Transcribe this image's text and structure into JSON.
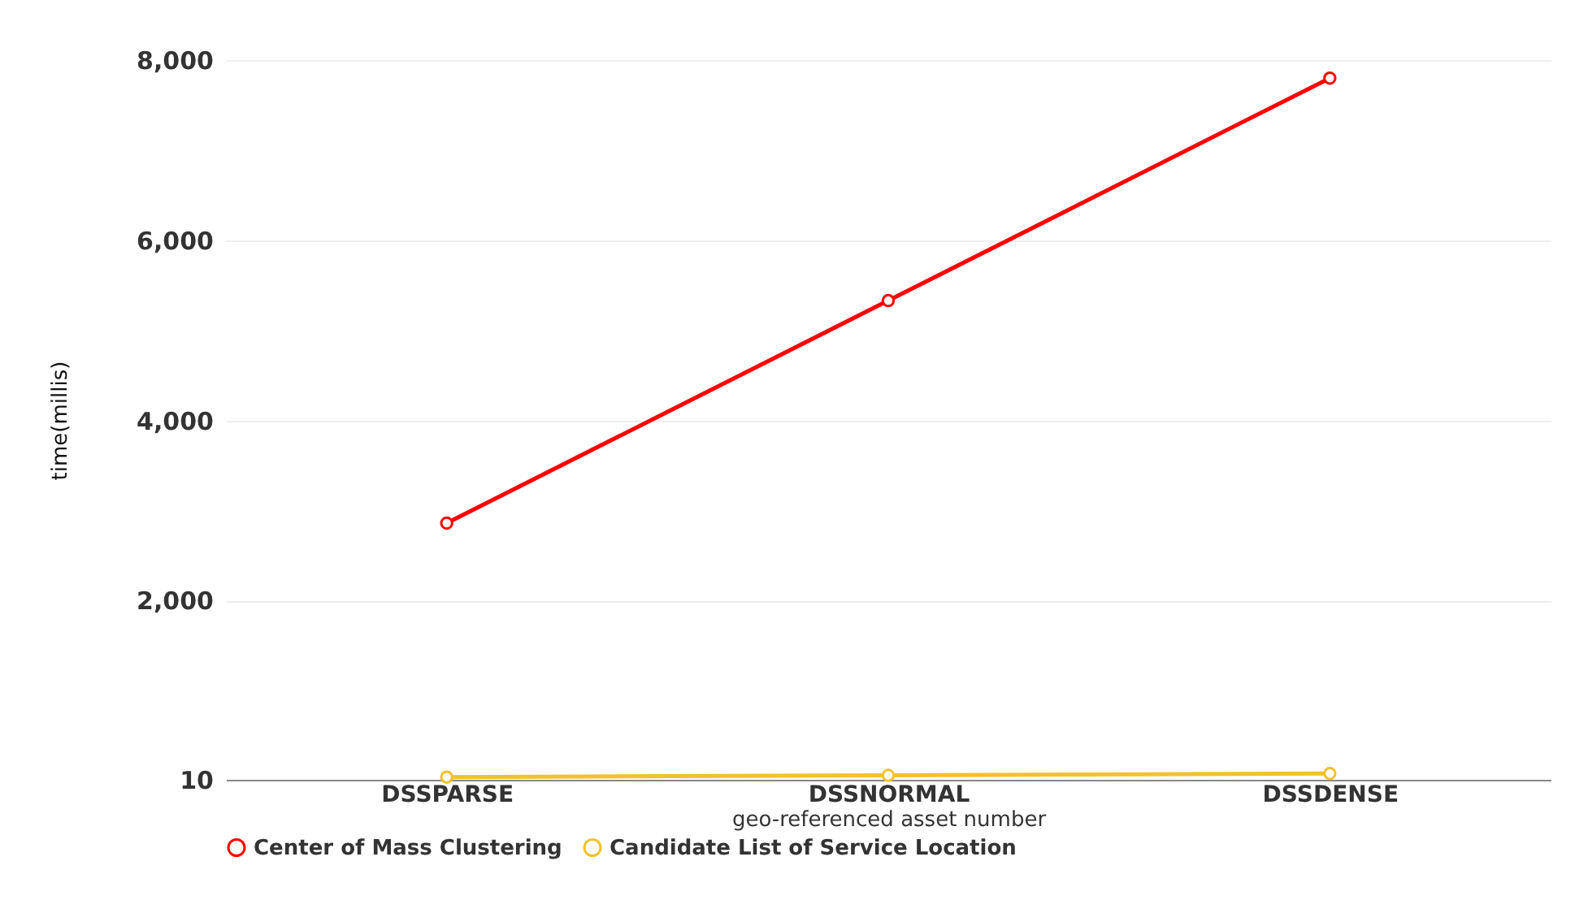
{
  "chart_data": {
    "type": "line",
    "xlabel": "geo-referenced asset number",
    "ylabel": "time(millis)",
    "categories": [
      "DSSPARSE",
      "DSSNORMAL",
      "DSSDENSE"
    ],
    "series": [
      {
        "name": "Center of Mass Clustering",
        "color": "#ff0000",
        "values": [
          2860,
          5330,
          7800
        ]
      },
      {
        "name": "Candidate List of Service Location",
        "color": "#f2c12e",
        "values": [
          40,
          60,
          80
        ]
      }
    ],
    "ylim": [
      10,
      8000
    ],
    "yticks": [
      10,
      {
        "value": 2000,
        "label": "2,000"
      },
      {
        "value": 4000,
        "label": "4,000"
      },
      {
        "value": 6000,
        "label": "6,000"
      },
      {
        "value": 8000,
        "label": "8,000"
      }
    ],
    "grid": "y",
    "legend": "bottom",
    "marker": "circle",
    "line_style": "solid"
  }
}
